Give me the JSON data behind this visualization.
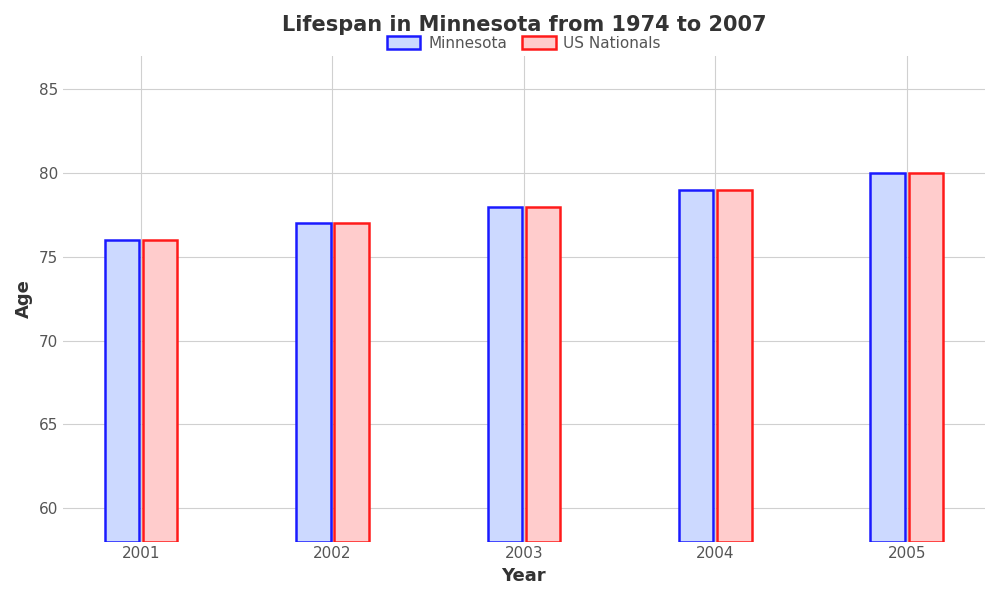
{
  "title": "Lifespan in Minnesota from 1974 to 2007",
  "xlabel": "Year",
  "ylabel": "Age",
  "years": [
    2001,
    2002,
    2003,
    2004,
    2005
  ],
  "minnesota": [
    76,
    77,
    78,
    79,
    80
  ],
  "us_nationals": [
    76,
    77,
    78,
    79,
    80
  ],
  "mn_bar_color": "#ccd9ff",
  "mn_edge_color": "#1a1aff",
  "us_bar_color": "#ffcccc",
  "us_edge_color": "#ff1a1a",
  "ylim": [
    58,
    87
  ],
  "yticks": [
    60,
    65,
    70,
    75,
    80,
    85
  ],
  "bar_width": 0.18,
  "legend_labels": [
    "Minnesota",
    "US Nationals"
  ],
  "background_color": "#ffffff",
  "grid_color": "#d0d0d0",
  "title_fontsize": 15,
  "axis_label_fontsize": 13,
  "tick_fontsize": 11,
  "legend_fontsize": 11
}
